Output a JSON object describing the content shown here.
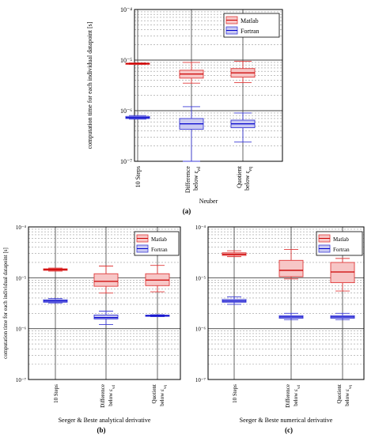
{
  "figure": {
    "legend": {
      "matlab_label": "Matlab",
      "fortran_label": "Fortran"
    },
    "colors": {
      "matlab_fill": "#f7c6c6",
      "matlab_stroke": "#e03a3a",
      "matlab_median": "#cc0000",
      "fortran_fill": "#c9c9f2",
      "fortran_stroke": "#3b3bd6",
      "fortran_median": "#0000cc",
      "grid_major": "#404040",
      "grid_minor": "#9a9a9a"
    },
    "yaxis_label": "computation time for each individual datapoint [s]",
    "y_tick_labels": [
      "10^-7",
      "10^-6",
      "10^-5",
      "10^-4"
    ],
    "categories": [
      {
        "line1": "10 Steps",
        "line2": "",
        "sub": ""
      },
      {
        "line1": "Difference",
        "line2": "below ε",
        "sub": "vd"
      },
      {
        "line1": "Quotient",
        "line2": "below ε",
        "sub": "vq"
      }
    ]
  },
  "chart_data": [
    {
      "type": "box",
      "panel": "(a)",
      "xlabel": "Neuber",
      "ylabel": "computation time for each individual datapoint [s]",
      "yscale": "log",
      "ylim": [
        1e-07,
        0.0001
      ],
      "categories": [
        "10 Steps",
        "Difference below ε_vd",
        "Quotient below ε_vq"
      ],
      "series": [
        {
          "name": "Matlab",
          "boxes": [
            {
              "whisker_low": 8.2e-06,
              "q1": 8.3e-06,
              "median": 8.5e-06,
              "q3": 8.7e-06,
              "whisker_high": 8.8e-06
            },
            {
              "whisker_low": 3.5e-06,
              "q1": 4.4e-06,
              "median": 5.3e-06,
              "q3": 6.3e-06,
              "whisker_high": 9e-06
            },
            {
              "whisker_low": 3.6e-06,
              "q1": 4.6e-06,
              "median": 5.6e-06,
              "q3": 6.8e-06,
              "whisker_high": 9.5e-06
            }
          ]
        },
        {
          "name": "Fortran",
          "boxes": [
            {
              "whisker_low": 6.8e-07,
              "q1": 7e-07,
              "median": 7.3e-07,
              "q3": 7.7e-07,
              "whisker_high": 8e-07
            },
            {
              "whisker_low": 1e-07,
              "q1": 4.3e-07,
              "median": 5.5e-07,
              "q3": 7e-07,
              "whisker_high": 1.2e-06
            },
            {
              "whisker_low": 2.4e-07,
              "q1": 4.6e-07,
              "median": 5.5e-07,
              "q3": 6.5e-07,
              "whisker_high": 9e-07
            }
          ]
        }
      ]
    },
    {
      "type": "box",
      "panel": "(b)",
      "xlabel": "Seeger & Beste analytical derivative",
      "ylabel": "computation time for each individual datapoint [s]",
      "yscale": "log",
      "ylim": [
        1e-07,
        0.0001
      ],
      "categories": [
        "10 Steps",
        "Difference below ε_vd",
        "Quotient below ε_vq"
      ],
      "series": [
        {
          "name": "Matlab",
          "boxes": [
            {
              "whisker_low": 1.35e-05,
              "q1": 1.4e-05,
              "median": 1.45e-05,
              "q3": 1.5e-05,
              "whisker_high": 1.55e-05
            },
            {
              "whisker_low": 5e-06,
              "q1": 6.8e-06,
              "median": 8.5e-06,
              "q3": 1.2e-05,
              "whisker_high": 1.7e-05
            },
            {
              "whisker_low": 5.3e-06,
              "q1": 7e-06,
              "median": 9e-06,
              "q3": 1.2e-05,
              "whisker_high": 1.75e-05
            }
          ]
        },
        {
          "name": "Fortran",
          "boxes": [
            {
              "whisker_low": 3.2e-06,
              "q1": 3.3e-06,
              "median": 3.5e-06,
              "q3": 3.7e-06,
              "whisker_high": 3.9e-06
            },
            {
              "whisker_low": 1.2e-06,
              "q1": 1.55e-06,
              "median": 1.65e-06,
              "q3": 1.85e-06,
              "whisker_high": 2.2e-06
            },
            {
              "whisker_low": 1.72e-06,
              "q1": 1.76e-06,
              "median": 1.8e-06,
              "q3": 1.84e-06,
              "whisker_high": 1.88e-06
            }
          ]
        }
      ]
    },
    {
      "type": "box",
      "panel": "(c)",
      "xlabel": "Seeger & Beste numerical derivative",
      "ylabel": "",
      "yscale": "log",
      "ylim": [
        1e-07,
        0.0001
      ],
      "categories": [
        "10 Steps",
        "Difference below ε_vd",
        "Quotient below ε_vq"
      ],
      "series": [
        {
          "name": "Matlab",
          "boxes": [
            {
              "whisker_low": 2.6e-05,
              "q1": 2.75e-05,
              "median": 2.9e-05,
              "q3": 3.1e-05,
              "whisker_high": 3.4e-05
            },
            {
              "whisker_low": 9.5e-06,
              "q1": 1.05e-05,
              "median": 1.4e-05,
              "q3": 2.2e-05,
              "whisker_high": 3.6e-05
            },
            {
              "whisker_low": 5.5e-06,
              "q1": 8e-06,
              "median": 1.3e-05,
              "q3": 2e-05,
              "whisker_high": 2.4e-05
            }
          ]
        },
        {
          "name": "Fortran",
          "boxes": [
            {
              "whisker_low": 3e-06,
              "q1": 3.3e-06,
              "median": 3.5e-06,
              "q3": 3.75e-06,
              "whisker_high": 4.2e-06
            },
            {
              "whisker_low": 1.5e-06,
              "q1": 1.6e-06,
              "median": 1.7e-06,
              "q3": 1.8e-06,
              "whisker_high": 2e-06
            },
            {
              "whisker_low": 1.5e-06,
              "q1": 1.6e-06,
              "median": 1.7e-06,
              "q3": 1.8e-06,
              "whisker_high": 2e-06
            }
          ]
        }
      ]
    }
  ]
}
